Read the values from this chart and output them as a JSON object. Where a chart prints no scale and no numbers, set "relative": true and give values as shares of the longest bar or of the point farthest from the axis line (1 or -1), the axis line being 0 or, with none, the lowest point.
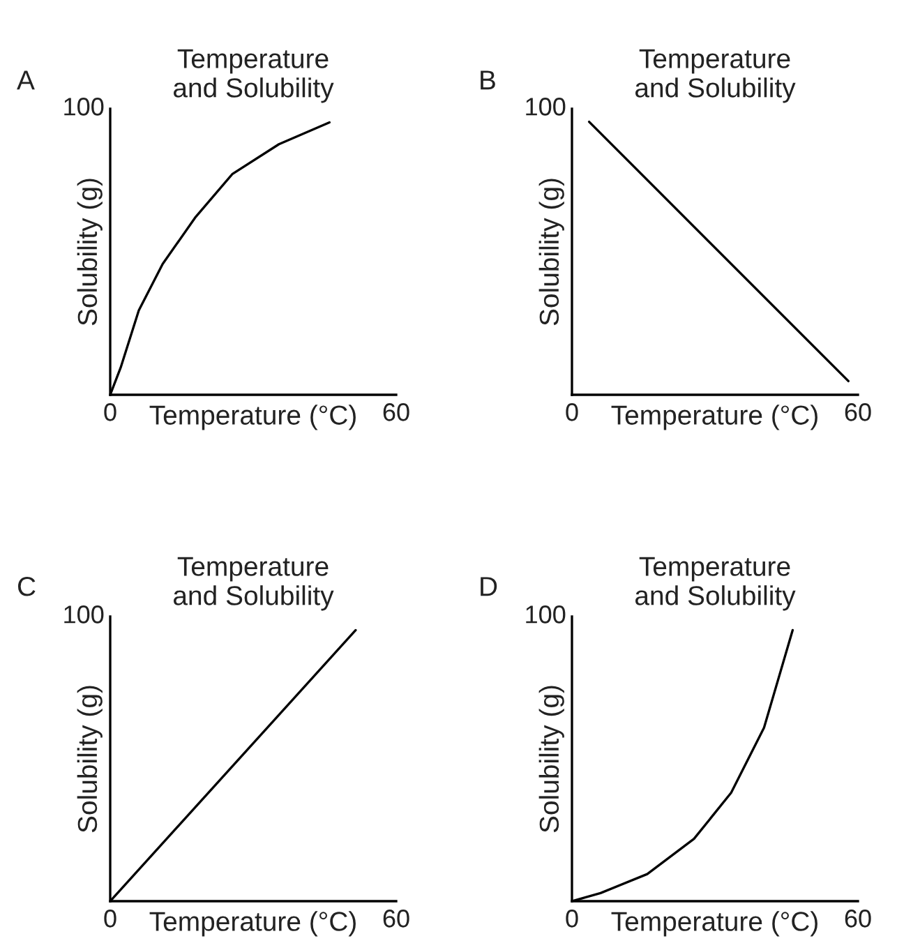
{
  "chart_data": [
    {
      "type": "line",
      "title": "Temperature\nand Solubility",
      "xlabel": "Temperature (°C)",
      "ylabel": "Solubility (g)",
      "annotations": [
        "A",
        "100"
      ],
      "relative": true,
      "xlim": [
        0,
        60
      ],
      "xticks": [
        0,
        60
      ],
      "series": [
        {
          "color": "#000000",
          "x": [
            0,
            2.2,
            6,
            11,
            17.8,
            25.6,
            35.4,
            46
          ],
          "values": [
            0,
            0.1,
            0.31,
            0.48,
            0.65,
            0.81,
            0.92,
            1
          ]
        }
      ]
    },
    {
      "type": "line",
      "title": "Temperature\nand Solubility",
      "xlabel": "Temperature (°C)",
      "ylabel": "Solubility (g)",
      "annotations": [
        "B",
        "100"
      ],
      "relative": true,
      "xlim": [
        0,
        60
      ],
      "xticks": [
        0,
        60
      ],
      "series": [
        {
          "color": "#000000",
          "x": [
            3.6,
            58
          ],
          "values": [
            1,
            0.05
          ]
        }
      ]
    },
    {
      "type": "line",
      "title": "Temperature\nand Solubility",
      "xlabel": "Temperature (°C)",
      "ylabel": "Solubility (g)",
      "annotations": [
        "C",
        "100"
      ],
      "relative": true,
      "xlim": [
        0,
        60
      ],
      "xticks": [
        0,
        60
      ],
      "series": [
        {
          "color": "#000000",
          "x": [
            0,
            51.5
          ],
          "values": [
            0,
            1
          ]
        }
      ]
    },
    {
      "type": "line",
      "title": "Temperature\nand Solubility",
      "xlabel": "Temperature (°C)",
      "ylabel": "Solubility (g)",
      "annotations": [
        "D",
        "100"
      ],
      "relative": true,
      "xlim": [
        0,
        60
      ],
      "xticks": [
        0,
        60
      ],
      "series": [
        {
          "color": "#000000",
          "x": [
            0,
            6,
            15.8,
            25.6,
            33.4,
            40.3,
            46.3
          ],
          "values": [
            0,
            0.03,
            0.1,
            0.23,
            0.4,
            0.64,
            1
          ]
        }
      ]
    }
  ]
}
